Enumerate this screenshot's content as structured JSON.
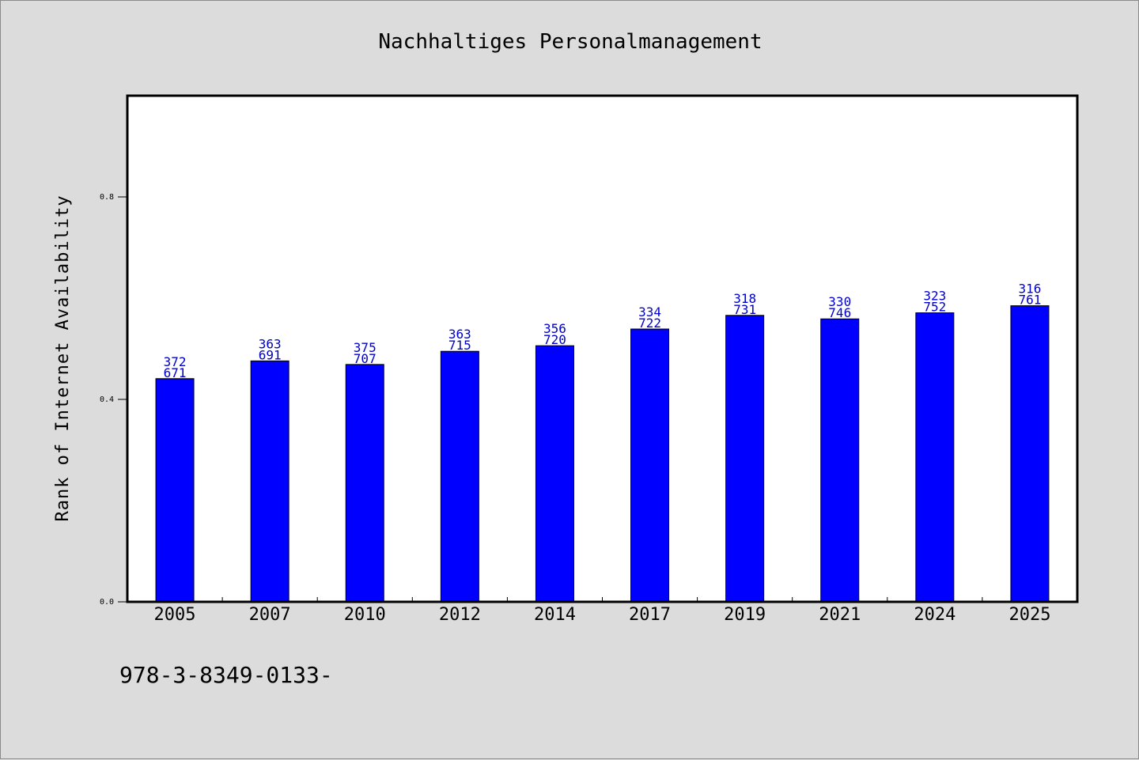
{
  "chart_data": {
    "type": "bar",
    "title": "Nachhaltiges Personalmanagement",
    "xlabel": "",
    "ylabel": "Rank of Internet Availability",
    "categories": [
      "2005",
      "2007",
      "2010",
      "2012",
      "2014",
      "2017",
      "2019",
      "2021",
      "2024",
      "2025"
    ],
    "series": [
      {
        "values": [
          0.441,
          0.476,
          0.469,
          0.495,
          0.506,
          0.539,
          0.566,
          0.559,
          0.571,
          0.585
        ],
        "color": "#0000ff"
      }
    ],
    "data_labels": [
      [
        "372",
        "671"
      ],
      [
        "363",
        "691"
      ],
      [
        "375",
        "707"
      ],
      [
        "363",
        "715"
      ],
      [
        "356",
        "720"
      ],
      [
        "334",
        "722"
      ],
      [
        "318",
        "731"
      ],
      [
        "330",
        "746"
      ],
      [
        "323",
        "752"
      ],
      [
        "316",
        "761"
      ]
    ],
    "yticks": [
      "0.0",
      "0.4",
      "0.8"
    ],
    "ylim": [
      0,
      1.0
    ],
    "grid": false,
    "label_color": "#0000cc"
  },
  "footer": {
    "text": "978-3-8349-0133-"
  }
}
